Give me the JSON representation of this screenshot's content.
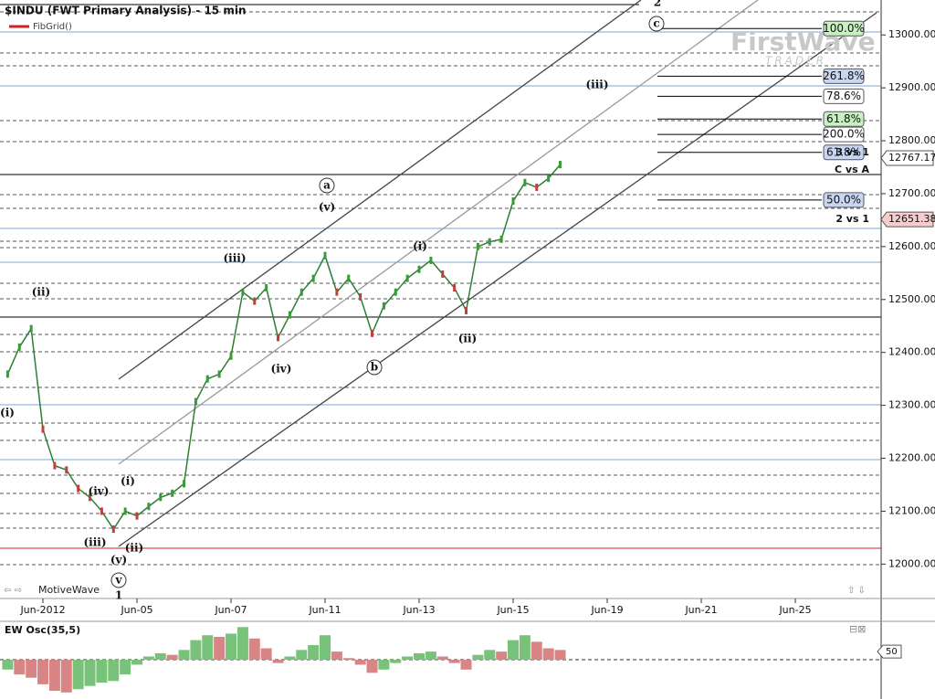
{
  "header": {
    "title": "$INDU (FWT Primary Analysis) - 15 min",
    "study": "FibGrid()",
    "brand": "MotiveWave",
    "logo": "FirstWave",
    "logo_sub": "TRADER"
  },
  "chart_data": [
    {
      "type": "line",
      "color": "#2e7d32",
      "categories": [
        null,
        null,
        null,
        "Jun-2012",
        null,
        null,
        null,
        null,
        null,
        null,
        null,
        "Jun-05",
        null,
        null,
        null,
        null,
        null,
        null,
        null,
        "Jun-07",
        null,
        null,
        null,
        null,
        null,
        null,
        null,
        "Jun-11",
        null,
        null,
        null,
        null,
        null,
        null,
        null,
        "Jun-13",
        null,
        null,
        null,
        null,
        null,
        null,
        null,
        "Jun-15",
        null,
        null,
        null,
        null,
        null,
        null,
        null,
        "Jun-19",
        null,
        null,
        null,
        null,
        null,
        null,
        null,
        "Jun-21",
        null,
        null,
        null,
        null,
        null,
        null,
        null,
        "Jun-25",
        null,
        null,
        null,
        null,
        null,
        null,
        null
      ],
      "values": [
        12359,
        12410,
        12445,
        12255,
        12186,
        12178,
        12143,
        12126,
        12100,
        12066,
        12100,
        12091,
        12109,
        12126,
        12134,
        12152,
        12307,
        12350,
        12359,
        12393,
        12514,
        12497,
        12522,
        12428,
        12471,
        12514,
        12540,
        12583,
        12514,
        12540,
        12505,
        12436,
        12488,
        12514,
        12540,
        12557,
        12574,
        12548,
        12522,
        12479,
        12600,
        12609,
        12614,
        12686,
        12721,
        12712,
        12729,
        12755,
        null,
        null,
        null,
        null,
        null,
        null,
        null,
        null,
        null,
        null,
        null,
        null,
        null,
        null,
        null,
        null,
        null,
        null,
        null,
        null,
        null,
        null,
        null,
        null,
        null,
        null,
        null
      ],
      "ylim": [
        11935,
        13066
      ],
      "yticks": [
        {
          "value": 12000,
          "label": "12000.00"
        },
        {
          "value": 12100,
          "label": "12100.00"
        },
        {
          "value": 12200,
          "label": "12200.00"
        },
        {
          "value": 12300,
          "label": "12300.00"
        },
        {
          "value": 12400,
          "label": "12400.00"
        },
        {
          "value": 12500,
          "label": "12500.00"
        },
        {
          "value": 12600,
          "label": "12600.00"
        },
        {
          "value": 12700,
          "label": "12700.00"
        },
        {
          "value": 12800,
          "label": "12800.00"
        },
        {
          "value": 12900,
          "label": "12900.00"
        },
        {
          "value": 13000,
          "label": "13000.00"
        }
      ],
      "price_markers": [
        {
          "value": 12767.17,
          "color": "#ffffff"
        },
        {
          "value": 12651.38,
          "color": "#f6cccc"
        }
      ],
      "annotations": [
        {
          "label": "100.0%",
          "value": 13012,
          "color": "#c8f0c0"
        },
        {
          "label": "261.8%",
          "value": 12922,
          "color": "#c9d6f2"
        },
        {
          "label": "78.6%",
          "value": 12884,
          "color": "#ffffff"
        },
        {
          "label": "61.8%",
          "value": 12841,
          "color": "#c8f0c0"
        },
        {
          "label": "200.0%",
          "value": 12812,
          "color": "#ffffff"
        },
        {
          "label": "61.8%",
          "value": 12778,
          "color": "#c9d6f2"
        },
        {
          "label": "50.0%",
          "value": 12688,
          "color": "#c9d6f2"
        }
      ],
      "notes": [
        {
          "text": "3 vs 1",
          "value": 12778
        },
        {
          "text": "C vs A",
          "value": 12745
        },
        {
          "text": "2 vs 1",
          "value": 12652
        }
      ],
      "wave_labels": [
        "(i)",
        "(ii)",
        "(iii)",
        "(iv)",
        "(v)",
        "(i)",
        "(ii)",
        "v",
        "(iii)",
        "(iv)",
        "(v)",
        "a",
        "b",
        "(i)",
        "(ii)",
        "(iii)",
        "c",
        "2",
        "1"
      ]
    },
    {
      "type": "bar",
      "title": "EW Osc(35,5)",
      "colors": {
        "up": "#79c279",
        "down": "#d98585"
      },
      "values": [
        -60,
        -90,
        -110,
        -150,
        -190,
        -200,
        -180,
        -160,
        -140,
        -130,
        -90,
        -30,
        20,
        40,
        30,
        60,
        120,
        150,
        140,
        160,
        200,
        130,
        70,
        -20,
        20,
        60,
        90,
        150,
        50,
        10,
        -30,
        -80,
        -60,
        -20,
        20,
        40,
        50,
        20,
        -20,
        -60,
        30,
        60,
        50,
        120,
        150,
        110,
        70,
        60,
        null,
        null,
        null,
        null,
        null,
        null,
        null,
        null,
        null,
        null,
        null,
        null,
        null,
        null,
        null,
        null,
        null,
        null,
        null,
        null,
        null,
        null,
        null,
        null,
        null,
        null,
        null
      ],
      "ylim": [
        -240,
        235
      ],
      "yticks": [
        50
      ]
    }
  ]
}
